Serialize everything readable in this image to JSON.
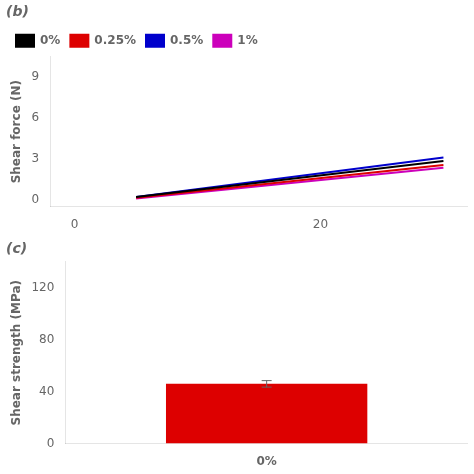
{
  "chart_data": [
    {
      "type": "line",
      "title": "(b)",
      "ylabel": "Shear force (N)",
      "x": [
        5,
        30
      ],
      "xlim": [
        -2,
        32
      ],
      "xticks": [
        0,
        20
      ],
      "ylim": [
        -0.5,
        10.5
      ],
      "yticks": [
        0,
        3,
        6,
        9
      ],
      "grid": false,
      "legend": "upper left",
      "series": [
        {
          "name": "0%",
          "color": "#000000",
          "values": [
            0.2,
            2.85
          ]
        },
        {
          "name": "0.25%",
          "color": "#dd0000",
          "values": [
            0.15,
            2.55
          ]
        },
        {
          "name": "0.5%",
          "color": "#0000cc",
          "values": [
            0.2,
            3.1
          ]
        },
        {
          "name": "1%",
          "color": "#cc00bb",
          "values": [
            0.1,
            2.35
          ]
        }
      ]
    },
    {
      "type": "bar",
      "title": "(c)",
      "ylabel": "Shear strength (MPa)",
      "categories": [
        "0%"
      ],
      "values": [
        46
      ],
      "errors": [
        2.5
      ],
      "color": "#dd0000",
      "ylim": [
        0,
        140
      ],
      "yticks": [
        0,
        40,
        80,
        120
      ],
      "grid": false
    }
  ]
}
